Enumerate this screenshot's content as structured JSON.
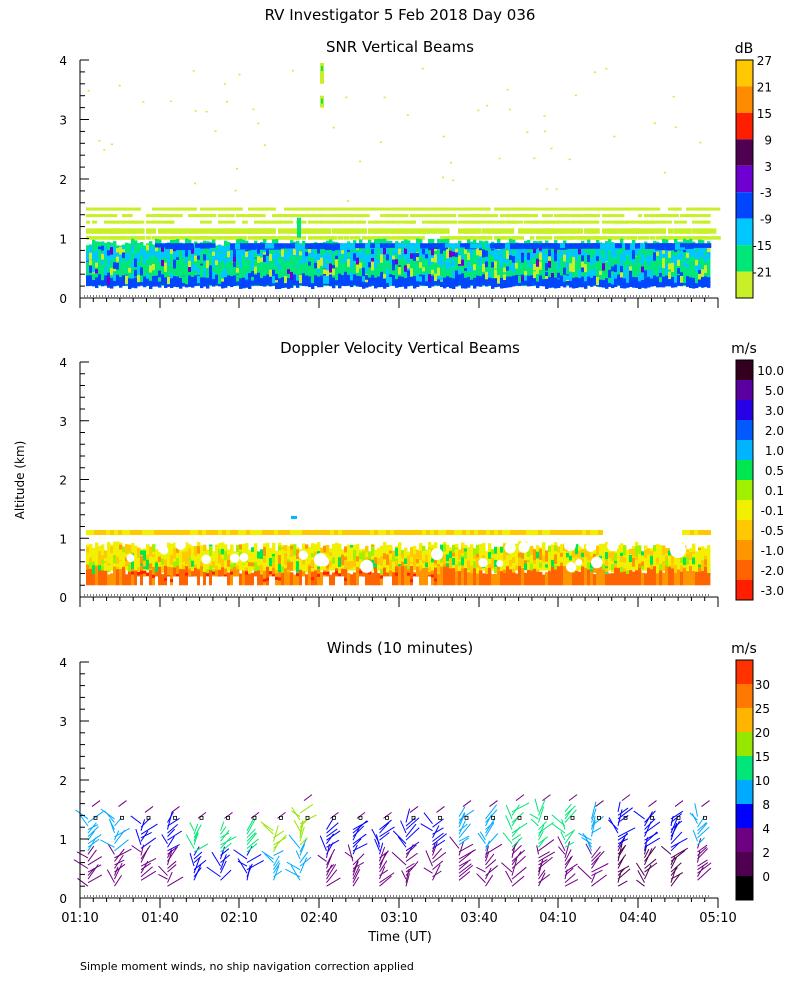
{
  "page_title": "RV Investigator    5 Feb 2018 Day 036",
  "shared": {
    "ylabel": "Altitude (km)",
    "xlabel": "Time (UT)",
    "y_ticks": [
      "0",
      "1",
      "2",
      "3",
      "4"
    ],
    "x_ticks": [
      "01:10",
      "01:40",
      "02:10",
      "02:40",
      "03:10",
      "03:40",
      "04:10",
      "04:40",
      "05:10"
    ],
    "footnote": "Simple moment winds, no ship navigation correction applied"
  },
  "chart_data": [
    {
      "type": "heatmap",
      "title": "SNR Vertical Beams",
      "ylabel": "Altitude (km)",
      "ylim": [
        0,
        4
      ],
      "x_range": [
        "01:10",
        "05:10"
      ],
      "colorbar": {
        "unit": "dB",
        "labels": [
          "27",
          "21",
          "15",
          "9",
          "3",
          "-3",
          "-9",
          "-15",
          "-21"
        ],
        "colors": [
          "#ffc800",
          "#ff8c00",
          "#ff1e00",
          "#500050",
          "#6e00d2",
          "#0046ff",
          "#00c8ff",
          "#00e678",
          "#c8f028"
        ]
      },
      "layers": [
        {
          "altitude_km": [
            0.2,
            0.5
          ],
          "class": "-3 (blue)"
        },
        {
          "altitude_km": [
            0.3,
            0.9
          ],
          "class": "-15 to -9 (green / cyan)"
        },
        {
          "altitude_km": [
            0.9,
            1.5
          ],
          "class": "-21 (yellow-green bands)"
        },
        {
          "altitude_km": [
            3.1,
            3.95
          ],
          "class": "sparse -15 near 02:40"
        }
      ]
    },
    {
      "type": "heatmap",
      "title": "Doppler Velocity Vertical Beams",
      "ylabel": "Altitude (km)",
      "ylim": [
        0,
        4
      ],
      "x_range": [
        "01:10",
        "05:10"
      ],
      "colorbar": {
        "unit": "m/s",
        "labels": [
          "10.0",
          "5.0",
          "3.0",
          "2.0",
          "1.0",
          "0.5",
          "0.1",
          "-0.1",
          "-0.5",
          "-1.0",
          "-2.0",
          "-3.0"
        ],
        "colors": [
          "#32001e",
          "#5a00a0",
          "#2800e6",
          "#005aff",
          "#00b4ff",
          "#00e650",
          "#a0f000",
          "#f0f000",
          "#ffc800",
          "#ff9600",
          "#ff6400",
          "#ff1e00"
        ]
      },
      "layers": [
        {
          "altitude_km": [
            0.2,
            0.45
          ],
          "class": "-1.0 to -2.0 (orange)"
        },
        {
          "altitude_km": [
            0.45,
            0.95
          ],
          "class": "-0.5 to 0.1 (yellow / green)"
        },
        {
          "altitude_km": [
            1.05,
            1.15
          ],
          "class": "-0.5 band"
        }
      ]
    },
    {
      "type": "barbs",
      "title": "Winds (10 minutes)",
      "ylabel": "Altitude (km)",
      "ylim": [
        0,
        4
      ],
      "x_range": [
        "01:10",
        "05:10"
      ],
      "interval_minutes": 10,
      "colorbar": {
        "unit": "m/s",
        "labels": [
          "30",
          "25",
          "20",
          "15",
          "10",
          "8",
          "4",
          "2",
          "0"
        ],
        "colors": [
          "#ff3200",
          "#ff7800",
          "#ffb400",
          "#96e600",
          "#00e678",
          "#00aaff",
          "#0000ff",
          "#6e0082",
          "#500050",
          "#000000"
        ]
      },
      "wind_profiles": [
        {
          "time": "01:10",
          "altitude_km": [
            0.2,
            1.4
          ],
          "speed_class": "4-10"
        },
        {
          "time": "01:20",
          "altitude_km": [
            0.2,
            1.4
          ],
          "speed_class": "4-10"
        },
        {
          "time": "01:30",
          "altitude_km": [
            0.3,
            1.3
          ],
          "speed_class": "4-8"
        },
        {
          "time": "01:40",
          "altitude_km": [
            0.2,
            1.3
          ],
          "speed_class": "4-8"
        },
        {
          "time": "01:50",
          "altitude_km": [
            0.3,
            1.2
          ],
          "speed_class": "8-15"
        },
        {
          "time": "02:00",
          "altitude_km": [
            0.3,
            1.2
          ],
          "speed_class": "8-15"
        },
        {
          "time": "02:10",
          "altitude_km": [
            0.3,
            1.2
          ],
          "speed_class": "8-15"
        },
        {
          "time": "02:20",
          "altitude_km": [
            0.3,
            1.2
          ],
          "speed_class": "10-20"
        },
        {
          "time": "02:30",
          "altitude_km": [
            0.3,
            1.5
          ],
          "speed_class": "10-20"
        },
        {
          "time": "02:40",
          "altitude_km": [
            0.2,
            1.2
          ],
          "speed_class": "4-8"
        },
        {
          "time": "02:50",
          "altitude_km": [
            0.2,
            1.2
          ],
          "speed_class": "4-8"
        },
        {
          "time": "03:00",
          "altitude_km": [
            0.2,
            1.2
          ],
          "speed_class": "4-8"
        },
        {
          "time": "03:10",
          "altitude_km": [
            0.2,
            1.3
          ],
          "speed_class": "4-8"
        },
        {
          "time": "03:20",
          "altitude_km": [
            0.3,
            1.3
          ],
          "speed_class": "4-8"
        },
        {
          "time": "03:30",
          "altitude_km": [
            0.3,
            1.4
          ],
          "speed_class": "4-10"
        },
        {
          "time": "03:40",
          "altitude_km": [
            0.2,
            1.4
          ],
          "speed_class": "4-10"
        },
        {
          "time": "03:50",
          "altitude_km": [
            0.2,
            1.5
          ],
          "speed_class": "4-15"
        },
        {
          "time": "04:00",
          "altitude_km": [
            0.2,
            1.5
          ],
          "speed_class": "4-15"
        },
        {
          "time": "04:10",
          "altitude_km": [
            0.2,
            1.5
          ],
          "speed_class": "4-15"
        },
        {
          "time": "04:20",
          "altitude_km": [
            0.2,
            1.4
          ],
          "speed_class": "4-10"
        },
        {
          "time": "04:30",
          "altitude_km": [
            0.2,
            1.5
          ],
          "speed_class": "2-8"
        },
        {
          "time": "04:40",
          "altitude_km": [
            0.2,
            1.4
          ],
          "speed_class": "2-8"
        },
        {
          "time": "04:50",
          "altitude_km": [
            0.2,
            1.4
          ],
          "speed_class": "2-8"
        },
        {
          "time": "05:00",
          "altitude_km": [
            0.3,
            1.4
          ],
          "speed_class": "4-10"
        }
      ]
    }
  ]
}
